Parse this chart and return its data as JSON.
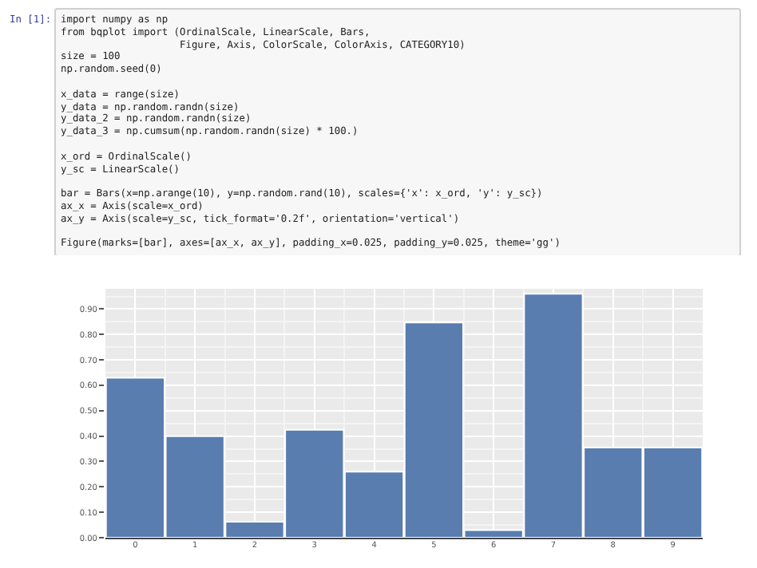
{
  "chart_data": {
    "type": "bar",
    "annotations": [
      "In [1]:",
      "import numpy as np\nfrom bqplot import (OrdinalScale, LinearScale, Bars,\n                    Figure, Axis, ColorScale, ColorAxis, CATEGORY10)\nsize = 100\nnp.random.seed(0)",
      "x_data = range(size)\ny_data = np.random.randn(size)\ny_data_2 = np.random.randn(size)\ny_data_3 = np.cumsum(np.random.randn(size) * 100.)",
      "x_ord = OrdinalScale()\ny_sc = LinearScale()",
      "bar = Bars(x=np.arange(10), y=np.random.rand(10), scales={'x': x_ord, 'y': y_sc})\nax_x = Axis(scale=x_ord)\nax_y = Axis(scale=y_sc, tick_format='0.2f', orientation='vertical')",
      "Figure(marks=[bar], axes=[ax_x, ax_y], padding_x=0.025, padding_y=0.025, theme='gg')"
    ],
    "categories": [
      "0",
      "1",
      "2",
      "3",
      "4",
      "5",
      "6",
      "7",
      "8",
      "9"
    ],
    "values": [
      0.63,
      0.4,
      0.063,
      0.425,
      0.26,
      0.847,
      0.03,
      0.96,
      0.355,
      0.355
    ],
    "color": "#5a7db0",
    "ylim": [
      0,
      0.98
    ],
    "yticks": [
      {
        "value": 0,
        "label": "0.00"
      },
      {
        "value": 0.1,
        "label": "0.10"
      },
      {
        "value": 0.2,
        "label": "0.20"
      },
      {
        "value": 0.3,
        "label": "0.30"
      },
      {
        "value": 0.4,
        "label": "0.40"
      },
      {
        "value": 0.5,
        "label": "0.50"
      },
      {
        "value": 0.6,
        "label": "0.60"
      },
      {
        "value": 0.7,
        "label": "0.70"
      },
      {
        "value": 0.8,
        "label": "0.80"
      },
      {
        "value": 0.9,
        "label": "0.90"
      }
    ],
    "grid": true
  }
}
